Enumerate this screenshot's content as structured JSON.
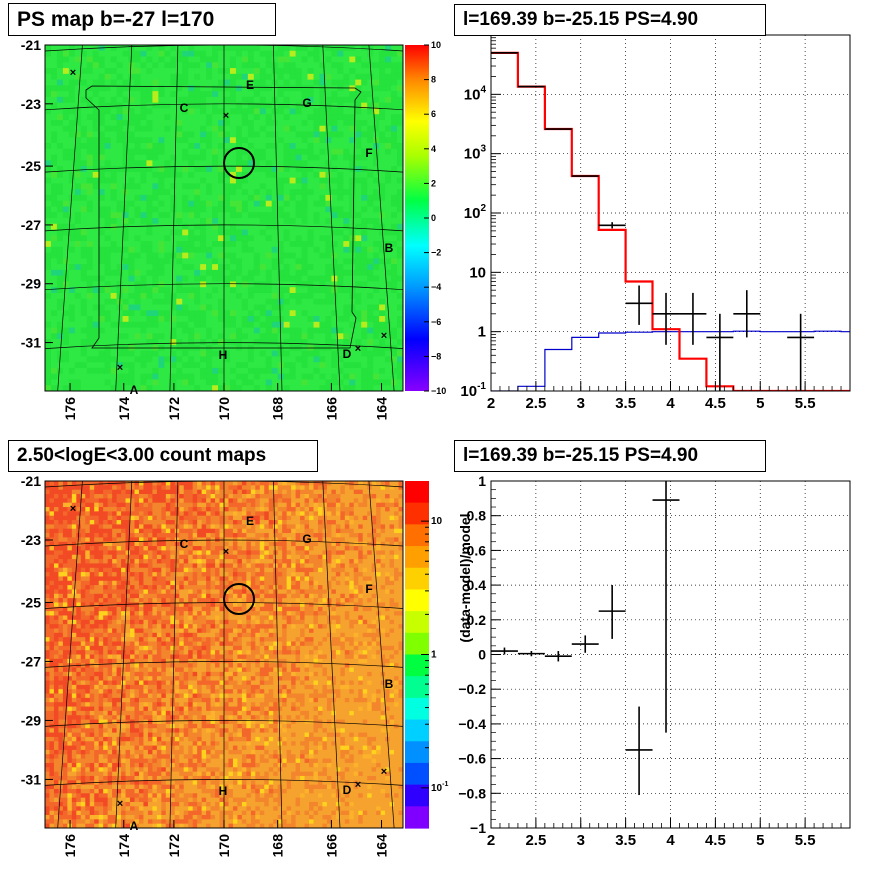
{
  "panels": {
    "tl": {
      "title": "PS map b=-27 l=170"
    },
    "tr": {
      "title": "l=169.39 b=-25.15 PS=4.90"
    },
    "bl": {
      "title": "2.50<logE<3.00 count maps"
    },
    "br": {
      "title": "l=169.39 b=-25.15 PS=4.90"
    }
  },
  "map_axes": {
    "x_ticks": [
      "176",
      "174",
      "172",
      "170",
      "168",
      "166",
      "164"
    ],
    "y_ticks": [
      "-21",
      "-23",
      "-25",
      "-27",
      "-29",
      "-31"
    ],
    "source_labels": [
      "A",
      "B",
      "C",
      "D",
      "E",
      "F",
      "G",
      "H"
    ]
  },
  "colors": {
    "ps_map": "#22e23a",
    "count_map": "#f28a28",
    "model": "#ff0000",
    "background_model": "#0000cc",
    "data": "#000000"
  },
  "chart_data": [
    {
      "type": "heatmap",
      "title": "PS map b=-27 l=170",
      "x_ticks": [
        176,
        174,
        172,
        170,
        168,
        166,
        164
      ],
      "y_ticks": [
        -21,
        -23,
        -25,
        -27,
        -29,
        -31
      ],
      "colorbar": {
        "min": -10,
        "max": 10,
        "ticks": [
          10,
          8,
          6,
          4,
          2,
          0,
          -2,
          -4,
          -6,
          -8,
          -10
        ]
      }
    },
    {
      "type": "line",
      "title": "l=169.39 b=-25.15 PS=4.90",
      "xlim": [
        2,
        6
      ],
      "ylim": [
        0.1,
        100000
      ],
      "yscale": "log",
      "x_ticks": [
        "2",
        "2.5",
        "3",
        "3.5",
        "4",
        "4.5",
        "5",
        "5.5"
      ],
      "y_ticks": [
        {
          "value": 0.1,
          "base": "10",
          "exp": "-1"
        },
        {
          "value": 1,
          "base": "1",
          "exp": ""
        },
        {
          "value": 10,
          "base": "10",
          "exp": ""
        },
        {
          "value": 100,
          "base": "10",
          "exp": "2"
        },
        {
          "value": 1000,
          "base": "10",
          "exp": "3"
        },
        {
          "value": 10000,
          "base": "10",
          "exp": "4"
        }
      ],
      "grid": true,
      "series": [
        {
          "kind": "step",
          "bins": [
            2.0,
            2.3,
            2.6,
            2.9,
            3.2,
            3.5,
            3.8,
            4.1,
            4.4,
            4.7,
            5.0,
            5.3,
            5.6,
            5.9,
            6.0
          ],
          "values": [
            50000,
            13500,
            2600,
            420,
            52,
            7,
            1.1,
            0.35,
            0.12,
            0.1,
            0.1,
            0.1,
            0.1,
            0.1
          ]
        },
        {
          "kind": "step",
          "bins": [
            2.0,
            2.3,
            2.6,
            2.9,
            3.2,
            3.5,
            3.8,
            4.1,
            4.4,
            4.7,
            5.0,
            5.3,
            5.6,
            5.9,
            6.0
          ],
          "values": [
            0.1,
            0.12,
            0.5,
            0.8,
            0.95,
            0.98,
            1.0,
            1.0,
            1.0,
            1.02,
            1.0,
            1.0,
            1.02,
            1.0
          ]
        },
        {
          "kind": "points",
          "x": [
            2.15,
            2.45,
            2.75,
            3.05,
            3.35,
            3.65,
            3.95,
            4.25,
            4.55,
            4.85,
            5.45
          ],
          "xerr": 0.15,
          "y": [
            50000,
            13500,
            2600,
            420,
            62,
            3,
            2,
            2,
            0.8,
            2,
            0.8
          ],
          "ylow": [
            50000,
            13500,
            2600,
            420,
            55,
            1.3,
            0.6,
            0.6,
            0.1,
            0.8,
            0.1
          ],
          "yhigh": [
            50000,
            13500,
            2600,
            420,
            70,
            6,
            4.5,
            4.5,
            2,
            5,
            2
          ]
        }
      ]
    },
    {
      "type": "heatmap",
      "title": "2.50<logE<3.00 count maps",
      "x_ticks": [
        176,
        174,
        172,
        170,
        168,
        166,
        164
      ],
      "y_ticks": [
        -21,
        -23,
        -25,
        -27,
        -29,
        -31
      ],
      "colorbar": {
        "scale": "log",
        "ticks": [
          {
            "value": 10,
            "base": "10",
            "exp": ""
          },
          {
            "value": 1,
            "base": "1",
            "exp": ""
          },
          {
            "value": 0.1,
            "base": "10",
            "exp": "-1"
          }
        ]
      }
    },
    {
      "type": "scatter",
      "title": "l=169.39 b=-25.15 PS=4.90",
      "ylabel": "(data-model)/model",
      "xlim": [
        2,
        6
      ],
      "ylim": [
        -1,
        1
      ],
      "x_ticks": [
        "2",
        "2.5",
        "3",
        "3.5",
        "4",
        "4.5",
        "5",
        "5.5"
      ],
      "y_ticks": [
        "1",
        "0.8",
        "0.6",
        "0.4",
        "0.2",
        "0",
        "-0.2",
        "-0.4",
        "-0.6",
        "-0.8",
        "-1"
      ],
      "grid": true,
      "x": [
        2.15,
        2.45,
        2.75,
        3.05,
        3.35,
        3.65,
        3.95
      ],
      "xerr": 0.15,
      "y": [
        0.02,
        0.005,
        -0.01,
        0.06,
        0.25,
        -0.55,
        0.89
      ],
      "ylow": [
        0.0,
        -0.01,
        -0.04,
        0.01,
        0.09,
        -0.81,
        -0.45
      ],
      "yhigh": [
        0.04,
        0.02,
        0.02,
        0.11,
        0.4,
        -0.3,
        1.0
      ]
    }
  ]
}
